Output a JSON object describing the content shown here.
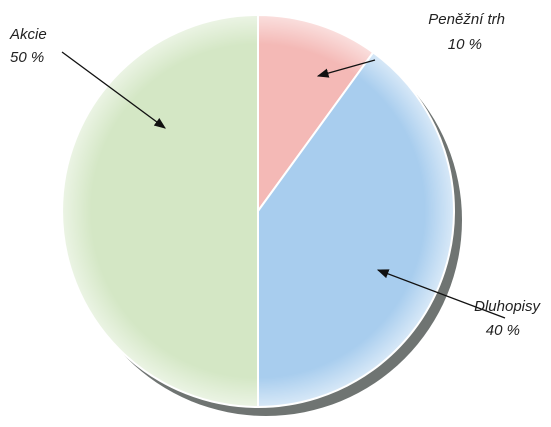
{
  "chart_data": {
    "type": "pie",
    "categories": [
      "Peněžní trh",
      "Dluhopisy",
      "Akcie"
    ],
    "values": [
      10,
      40,
      50
    ],
    "value_labels": [
      "10 %",
      "40 %",
      "50 %"
    ],
    "colors": [
      "#f4b9b6",
      "#a8cdee",
      "#d4e7c5"
    ]
  }
}
